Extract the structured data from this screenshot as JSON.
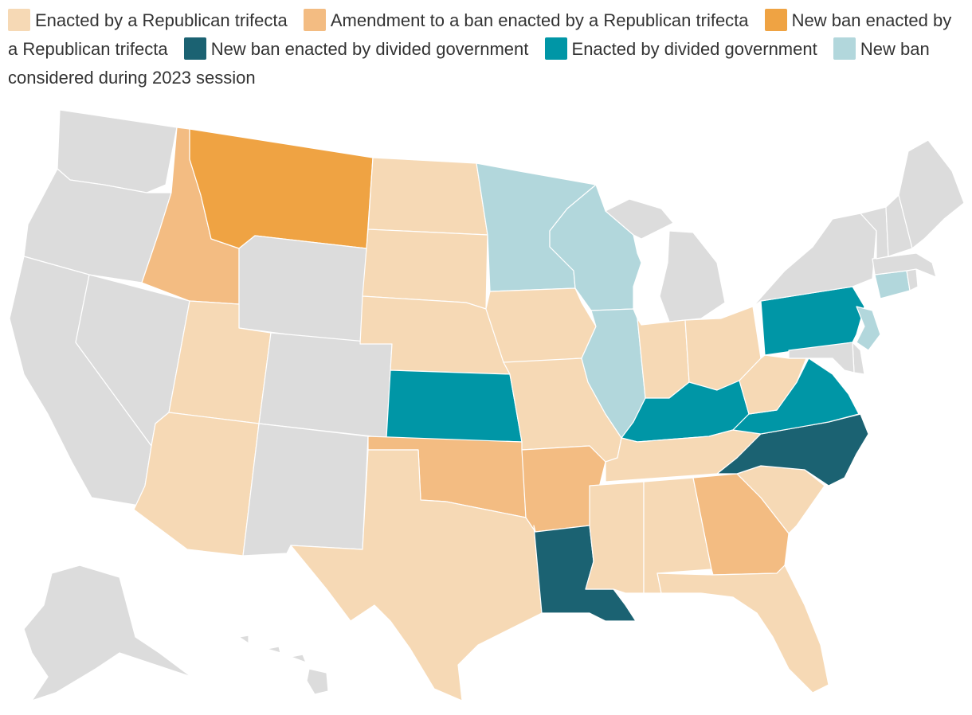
{
  "legend": [
    {
      "key": "rep_trifecta",
      "label": "Enacted by a Republican trifecta",
      "color": "#f6d9b5"
    },
    {
      "key": "amend_rep",
      "label": "Amendment to a ban enacted by a Republican trifecta",
      "color": "#f3bc82"
    },
    {
      "key": "new_rep",
      "label": "New ban enacted by a Republican trifecta",
      "color": "#efa343"
    },
    {
      "key": "new_divided",
      "label": "New ban enacted by divided government",
      "color": "#1b6272"
    },
    {
      "key": "divided",
      "label": "Enacted by divided government",
      "color": "#0096a6"
    },
    {
      "key": "considered",
      "label": "New ban considered during 2023 session",
      "color": "#b2d7dc"
    }
  ],
  "no_data_color": "#dcdcdc",
  "states": [
    {
      "abbr": "WA",
      "category": "none"
    },
    {
      "abbr": "OR",
      "category": "none"
    },
    {
      "abbr": "CA",
      "category": "none"
    },
    {
      "abbr": "NV",
      "category": "none"
    },
    {
      "abbr": "ID",
      "category": "amend_rep"
    },
    {
      "abbr": "MT",
      "category": "new_rep"
    },
    {
      "abbr": "WY",
      "category": "none"
    },
    {
      "abbr": "UT",
      "category": "rep_trifecta"
    },
    {
      "abbr": "AZ",
      "category": "rep_trifecta"
    },
    {
      "abbr": "CO",
      "category": "none"
    },
    {
      "abbr": "NM",
      "category": "none"
    },
    {
      "abbr": "ND",
      "category": "rep_trifecta"
    },
    {
      "abbr": "SD",
      "category": "rep_trifecta"
    },
    {
      "abbr": "NE",
      "category": "rep_trifecta"
    },
    {
      "abbr": "KS",
      "category": "divided"
    },
    {
      "abbr": "OK",
      "category": "amend_rep"
    },
    {
      "abbr": "TX",
      "category": "rep_trifecta"
    },
    {
      "abbr": "MN",
      "category": "considered"
    },
    {
      "abbr": "IA",
      "category": "rep_trifecta"
    },
    {
      "abbr": "MO",
      "category": "rep_trifecta"
    },
    {
      "abbr": "AR",
      "category": "amend_rep"
    },
    {
      "abbr": "LA",
      "category": "new_divided"
    },
    {
      "abbr": "WI",
      "category": "considered"
    },
    {
      "abbr": "IL",
      "category": "considered"
    },
    {
      "abbr": "MI",
      "category": "none"
    },
    {
      "abbr": "IN",
      "category": "rep_trifecta"
    },
    {
      "abbr": "OH",
      "category": "rep_trifecta"
    },
    {
      "abbr": "KY",
      "category": "divided"
    },
    {
      "abbr": "TN",
      "category": "rep_trifecta"
    },
    {
      "abbr": "MS",
      "category": "rep_trifecta"
    },
    {
      "abbr": "AL",
      "category": "rep_trifecta"
    },
    {
      "abbr": "GA",
      "category": "amend_rep"
    },
    {
      "abbr": "FL",
      "category": "rep_trifecta"
    },
    {
      "abbr": "SC",
      "category": "rep_trifecta"
    },
    {
      "abbr": "NC",
      "category": "new_divided"
    },
    {
      "abbr": "VA",
      "category": "divided"
    },
    {
      "abbr": "WV",
      "category": "rep_trifecta"
    },
    {
      "abbr": "PA",
      "category": "divided"
    },
    {
      "abbr": "NY",
      "category": "none"
    },
    {
      "abbr": "NJ",
      "category": "considered"
    },
    {
      "abbr": "DE",
      "category": "none"
    },
    {
      "abbr": "MD",
      "category": "none"
    },
    {
      "abbr": "CT",
      "category": "considered"
    },
    {
      "abbr": "RI",
      "category": "none"
    },
    {
      "abbr": "MA",
      "category": "none"
    },
    {
      "abbr": "VT",
      "category": "none"
    },
    {
      "abbr": "NH",
      "category": "none"
    },
    {
      "abbr": "ME",
      "category": "none"
    },
    {
      "abbr": "AK",
      "category": "none"
    },
    {
      "abbr": "HI",
      "category": "none"
    }
  ]
}
